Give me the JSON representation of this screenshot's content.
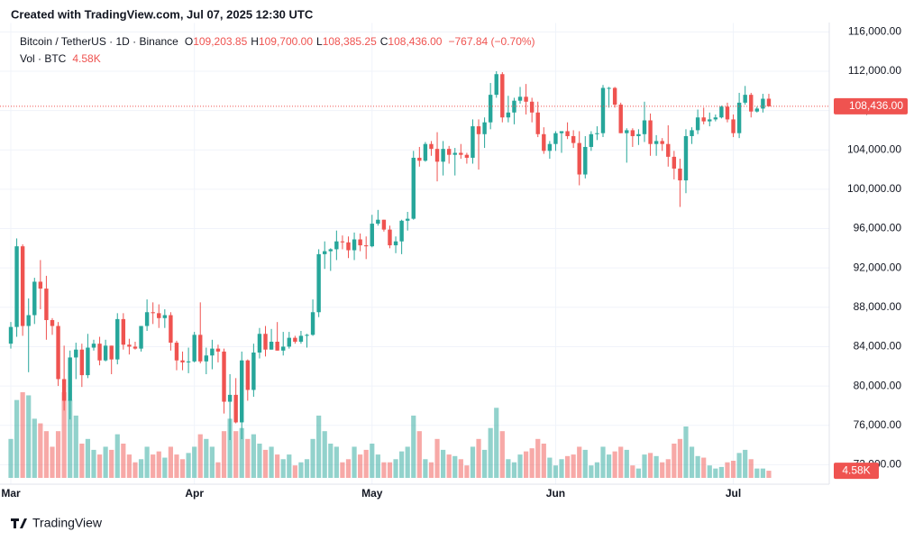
{
  "chart_data": {
    "type": "candlestick",
    "watermark": "Created with TradingView.com, Jul 07, 2025 12:30 UTC",
    "symbol": "Bitcoin / TetherUS · 1D · Binance",
    "ohlc_keys": [
      "O",
      "H",
      "L",
      "C"
    ],
    "ohlc_labels": [
      "109,203.85",
      "109,700.00",
      "108,385.25",
      "108,436.00"
    ],
    "change_label": "−767.84 (−0.70%)",
    "volume_title": "Vol · BTC",
    "last_volume_label": "4.58K",
    "last_price_label": "108,436.00",
    "brand": "TradingView",
    "up_color": "#26a69a",
    "down_color": "#ef5350",
    "grid": true,
    "categories": [
      "Mar",
      null,
      null,
      null,
      null,
      null,
      null,
      null,
      null,
      null,
      null,
      null,
      null,
      null,
      null,
      null,
      null,
      null,
      null,
      null,
      null,
      null,
      null,
      null,
      null,
      null,
      null,
      null,
      null,
      null,
      null,
      "Apr",
      null,
      null,
      null,
      null,
      null,
      null,
      null,
      null,
      null,
      null,
      null,
      null,
      null,
      null,
      null,
      null,
      null,
      null,
      null,
      null,
      null,
      null,
      null,
      null,
      null,
      null,
      null,
      null,
      null,
      "May",
      null,
      null,
      null,
      null,
      null,
      null,
      null,
      null,
      null,
      null,
      null,
      null,
      null,
      null,
      null,
      null,
      null,
      null,
      null,
      null,
      null,
      null,
      null,
      null,
      null,
      null,
      null,
      null,
      null,
      null,
      "Jun",
      null,
      null,
      null,
      null,
      null,
      null,
      null,
      null,
      null,
      null,
      null,
      null,
      null,
      null,
      null,
      null,
      null,
      null,
      null,
      null,
      null,
      null,
      null,
      null,
      null,
      null,
      null,
      null,
      null,
      "Jul",
      null,
      null,
      null,
      null,
      null,
      null
    ],
    "open": [
      84300,
      86000,
      94200,
      86100,
      87200,
      90600,
      89900,
      86700,
      86100,
      80700,
      78500,
      82900,
      83700,
      81100,
      83900,
      84300,
      82600,
      84100,
      82700,
      86800,
      84200,
      84000,
      83800,
      86100,
      87500,
      87400,
      86900,
      87200,
      84400,
      82600,
      82400,
      82500,
      85200,
      82500,
      83100,
      83800,
      83500,
      78400,
      79100,
      76300,
      82600,
      79600,
      83400,
      85300,
      83700,
      84500,
      83600,
      84000,
      84900,
      84500,
      85100,
      85200,
      87500,
      93400,
      93700,
      93900,
      94700,
      94600,
      93800,
      94900,
      94300,
      94200,
      96500,
      96900,
      95900,
      94300,
      94700,
      96800,
      97000,
      103200,
      102900,
      104600,
      104100,
      102800,
      104100,
      103500,
      103700,
      103500,
      103200,
      106400,
      105600,
      106800,
      109600,
      111700,
      107300,
      107800,
      109000,
      109400,
      108900,
      107800,
      105600,
      103900,
      104600,
      105700,
      105900,
      105400,
      104700,
      101500,
      104300,
      105600,
      105700,
      110300,
      110300,
      108600,
      105700,
      106000,
      105400,
      105600,
      107000,
      104600,
      104900,
      104600,
      103300,
      102100,
      100900,
      105400,
      106000,
      107300,
      106900,
      107100,
      107300,
      108400,
      107100,
      105700,
      108800,
      109600,
      107900,
      108200,
      109203.85
    ],
    "high": [
      86500,
      95000,
      94400,
      88900,
      91000,
      92800,
      91200,
      86900,
      86500,
      84100,
      83600,
      84400,
      84300,
      85300,
      84700,
      85000,
      84700,
      84100,
      87400,
      87400,
      84800,
      84500,
      86100,
      88800,
      88500,
      88300,
      87800,
      87500,
      84600,
      83500,
      83900,
      85500,
      88500,
      83900,
      84700,
      84200,
      83800,
      81200,
      80800,
      83500,
      82700,
      84300,
      85900,
      86100,
      85800,
      86500,
      85500,
      85500,
      85100,
      85600,
      85300,
      88800,
      93900,
      94700,
      94000,
      95800,
      95300,
      95200,
      95600,
      95500,
      95200,
      97400,
      97900,
      96900,
      96300,
      95200,
      96900,
      97700,
      103900,
      104300,
      104800,
      104900,
      105800,
      104900,
      104400,
      104200,
      104600,
      103700,
      107100,
      107100,
      107300,
      110800,
      112000,
      111900,
      109500,
      109300,
      110400,
      110700,
      109300,
      108900,
      106300,
      104900,
      105900,
      105900,
      106800,
      106000,
      105900,
      105400,
      105900,
      106400,
      110600,
      110400,
      110400,
      108800,
      106200,
      106200,
      106100,
      108900,
      107700,
      105500,
      105200,
      106500,
      103900,
      103100,
      106100,
      106300,
      108100,
      108300,
      107800,
      107600,
      108500,
      108800,
      107600,
      109800,
      110500,
      109800,
      108400,
      109700,
      109700
    ],
    "low": [
      83800,
      85000,
      85100,
      81400,
      86300,
      87800,
      84700,
      85200,
      80000,
      77500,
      76600,
      80700,
      79900,
      80800,
      83600,
      82100,
      82500,
      81200,
      82200,
      83700,
      83200,
      83700,
      83500,
      85600,
      86300,
      85900,
      85900,
      83600,
      81600,
      81600,
      81300,
      82400,
      82300,
      81200,
      81700,
      82400,
      77200,
      74500,
      76200,
      74600,
      78500,
      78900,
      82800,
      83000,
      83700,
      83600,
      83100,
      83800,
      84300,
      84300,
      83900,
      85100,
      87000,
      91900,
      91700,
      92800,
      93900,
      93000,
      92800,
      93700,
      92900,
      94100,
      96300,
      95700,
      94000,
      93500,
      93400,
      95800,
      96900,
      102300,
      102800,
      103400,
      100800,
      101400,
      102600,
      101400,
      103100,
      102600,
      102600,
      102000,
      104200,
      106100,
      109300,
      106800,
      106800,
      106600,
      108700,
      107600,
      106800,
      105300,
      103600,
      103100,
      103900,
      103700,
      105100,
      104200,
      100400,
      101100,
      103900,
      105000,
      105300,
      108300,
      108300,
      105700,
      102700,
      104300,
      104500,
      104800,
      103400,
      103400,
      103900,
      102300,
      101000,
      98200,
      99600,
      104600,
      105600,
      106600,
      106400,
      106900,
      107200,
      106800,
      105300,
      105200,
      108600,
      107300,
      107800,
      107800,
      108385.25
    ],
    "close": [
      86000,
      94200,
      86100,
      87200,
      90600,
      89900,
      86700,
      86100,
      80700,
      78500,
      82900,
      83700,
      81100,
      83900,
      84300,
      82600,
      84100,
      82700,
      86800,
      84200,
      84000,
      83800,
      86100,
      87500,
      87400,
      86900,
      87200,
      84400,
      82600,
      82400,
      82500,
      85200,
      82500,
      83100,
      83800,
      83500,
      78400,
      79100,
      76300,
      82600,
      79600,
      83400,
      85300,
      83700,
      84500,
      83600,
      84000,
      84900,
      84500,
      85100,
      85200,
      87500,
      93400,
      93700,
      93900,
      94700,
      94600,
      93800,
      94900,
      94300,
      94200,
      96500,
      96900,
      95900,
      94300,
      94700,
      96800,
      97000,
      103200,
      102900,
      104600,
      104100,
      102800,
      104100,
      103500,
      103700,
      103500,
      103200,
      106400,
      105600,
      106800,
      109600,
      111700,
      107300,
      107800,
      109000,
      109400,
      108900,
      107800,
      105600,
      103900,
      104600,
      105700,
      105900,
      105400,
      104700,
      101500,
      104300,
      105600,
      105700,
      110300,
      110300,
      108600,
      105700,
      106000,
      105400,
      105600,
      107000,
      104600,
      104900,
      104600,
      103300,
      102100,
      100900,
      105400,
      106000,
      107300,
      106900,
      107100,
      107300,
      108400,
      107100,
      105700,
      108800,
      109600,
      107900,
      108200,
      109200,
      108436
    ],
    "volume": [
      25000,
      50000,
      55000,
      53000,
      38000,
      35000,
      30000,
      20000,
      30000,
      55000,
      50000,
      40000,
      22000,
      25000,
      18000,
      15000,
      20000,
      18000,
      28000,
      22000,
      15000,
      10000,
      12000,
      20000,
      15000,
      17000,
      13000,
      20000,
      15000,
      12000,
      16000,
      20000,
      28000,
      25000,
      20000,
      10000,
      30000,
      38000,
      30000,
      32000,
      25000,
      28000,
      22000,
      18000,
      20000,
      15000,
      12000,
      15000,
      8000,
      10000,
      12000,
      25000,
      40000,
      30000,
      22000,
      20000,
      10000,
      12000,
      20000,
      15000,
      18000,
      22000,
      15000,
      10000,
      10000,
      12000,
      17000,
      20000,
      40000,
      30000,
      12000,
      10000,
      25000,
      18000,
      15000,
      14000,
      12000,
      8000,
      20000,
      25000,
      18000,
      32000,
      45000,
      30000,
      12000,
      10000,
      15000,
      17000,
      19000,
      25000,
      22000,
      13000,
      8000,
      12000,
      14000,
      15000,
      20000,
      18000,
      8000,
      10000,
      20000,
      15000,
      17000,
      20000,
      18000,
      8000,
      6000,
      15000,
      16000,
      14000,
      10000,
      12000,
      22000,
      25000,
      33000,
      20000,
      14000,
      13000,
      8000,
      6000,
      7000,
      10000,
      11000,
      16000,
      18000,
      12000,
      6000,
      6000,
      4580
    ],
    "ylim": [
      70200,
      116900
    ],
    "yticks": [
      {
        "value": 72000,
        "label": "72,000.00"
      },
      {
        "value": 76000,
        "label": "76,000.00"
      },
      {
        "value": 80000,
        "label": "80,000.00"
      },
      {
        "value": 84000,
        "label": "84,000.00"
      },
      {
        "value": 88000,
        "label": "88,000.00"
      },
      {
        "value": 92000,
        "label": "92,000.00"
      },
      {
        "value": 96000,
        "label": "96,000.00"
      },
      {
        "value": 100000,
        "label": "100,000.00"
      },
      {
        "value": 104000,
        "label": "104,000.00"
      },
      {
        "value": 108000,
        "label": "108,000.00"
      },
      {
        "value": 112000,
        "label": "112,000.00"
      },
      {
        "value": 116000,
        "label": "116,000.00"
      }
    ]
  }
}
